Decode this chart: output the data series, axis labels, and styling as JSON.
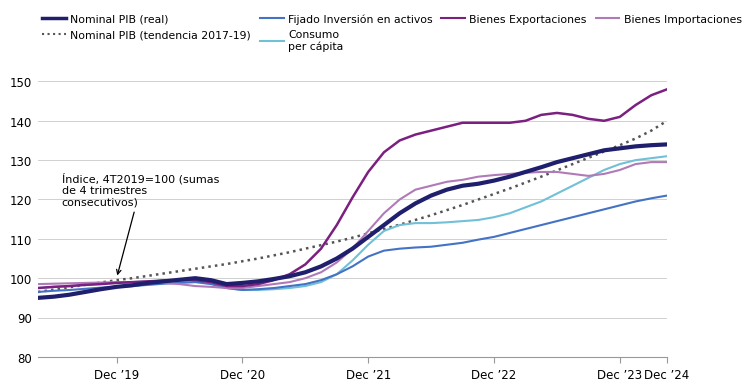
{
  "ylim": [
    80,
    155
  ],
  "yticks": [
    80,
    90,
    100,
    110,
    120,
    130,
    140,
    150
  ],
  "xtick_labels": [
    "Dec ’19",
    "Dec ’20",
    "Dec ’21",
    "Dec ’22",
    "Dec ’23",
    "Dec ’24"
  ],
  "annotation_text": "Índice, 4T2019=100 (sumas\nde 4 trimestres\nconsecutivos)",
  "colors": {
    "nominal_pib_real": "#1f1f6e",
    "nominal_pib_tendencia": "#555555",
    "fijado_inversion": "#4472c4",
    "consumo_per_capita": "#70c0d8",
    "bienes_exportaciones": "#7b2080",
    "bienes_importaciones": "#b07ab8"
  },
  "x_numeric": [
    0,
    1,
    2,
    3,
    4,
    5,
    6,
    7,
    8,
    9,
    10,
    11,
    12,
    13,
    14,
    15,
    16,
    17,
    18,
    19,
    20,
    21,
    22,
    23,
    24,
    25,
    26,
    27,
    28,
    29,
    30,
    31,
    32,
    33,
    34,
    35,
    36,
    37,
    38,
    39,
    40
  ],
  "nominal_pib_real": [
    95.0,
    95.3,
    95.8,
    96.5,
    97.2,
    97.8,
    98.2,
    98.8,
    99.2,
    99.6,
    100.0,
    99.5,
    98.5,
    98.8,
    99.2,
    99.8,
    100.5,
    101.5,
    103.0,
    105.0,
    107.5,
    110.5,
    113.5,
    116.5,
    119.0,
    121.0,
    122.5,
    123.5,
    124.0,
    124.8,
    125.8,
    127.0,
    128.2,
    129.5,
    130.5,
    131.5,
    132.5,
    133.0,
    133.5,
    133.8,
    134.0
  ],
  "nominal_pib_tendencia": [
    96.5,
    97.1,
    97.7,
    98.3,
    98.9,
    99.5,
    100.0,
    100.6,
    101.2,
    101.8,
    102.4,
    103.0,
    103.6,
    104.3,
    105.0,
    105.8,
    106.6,
    107.5,
    108.4,
    109.3,
    110.3,
    111.4,
    112.5,
    113.6,
    114.8,
    116.0,
    117.3,
    118.6,
    120.0,
    121.4,
    122.8,
    124.3,
    125.8,
    127.4,
    129.0,
    130.6,
    132.2,
    133.8,
    135.5,
    137.5,
    140.0
  ],
  "fijado_inversion": [
    96.5,
    96.8,
    97.0,
    97.3,
    97.6,
    97.8,
    98.0,
    98.3,
    98.6,
    98.8,
    99.0,
    98.5,
    97.5,
    97.0,
    97.2,
    97.5,
    98.0,
    98.5,
    99.5,
    101.0,
    103.0,
    105.5,
    107.0,
    107.5,
    107.8,
    108.0,
    108.5,
    109.0,
    109.8,
    110.5,
    111.5,
    112.5,
    113.5,
    114.5,
    115.5,
    116.5,
    117.5,
    118.5,
    119.5,
    120.3,
    121.0
  ],
  "consumo_per_capita": [
    97.5,
    97.8,
    98.0,
    98.3,
    98.6,
    98.8,
    99.0,
    99.2,
    99.4,
    99.5,
    99.5,
    99.0,
    97.5,
    97.0,
    97.0,
    97.2,
    97.5,
    98.0,
    99.0,
    101.0,
    104.5,
    108.5,
    112.0,
    113.5,
    114.0,
    114.0,
    114.2,
    114.5,
    114.8,
    115.5,
    116.5,
    118.0,
    119.5,
    121.5,
    123.5,
    125.5,
    127.5,
    129.0,
    130.0,
    130.5,
    131.0
  ],
  "bienes_exportaciones": [
    97.5,
    97.8,
    98.0,
    98.3,
    98.5,
    98.8,
    99.0,
    99.2,
    99.4,
    99.5,
    99.5,
    99.0,
    98.0,
    98.0,
    98.5,
    99.5,
    101.0,
    103.5,
    107.5,
    113.5,
    120.5,
    127.0,
    132.0,
    135.0,
    136.5,
    137.5,
    138.5,
    139.5,
    139.5,
    139.5,
    139.5,
    140.0,
    141.5,
    142.0,
    141.5,
    140.5,
    140.0,
    141.0,
    144.0,
    146.5,
    148.0
  ],
  "bienes_importaciones": [
    98.5,
    98.6,
    98.7,
    98.8,
    98.9,
    99.0,
    99.0,
    99.0,
    98.8,
    98.5,
    98.0,
    97.8,
    97.5,
    97.5,
    98.0,
    98.5,
    99.0,
    100.0,
    101.5,
    104.0,
    107.5,
    112.0,
    116.5,
    120.0,
    122.5,
    123.5,
    124.5,
    125.0,
    125.8,
    126.2,
    126.5,
    126.8,
    127.0,
    127.0,
    126.5,
    126.0,
    126.5,
    127.5,
    129.0,
    129.5,
    129.5
  ]
}
